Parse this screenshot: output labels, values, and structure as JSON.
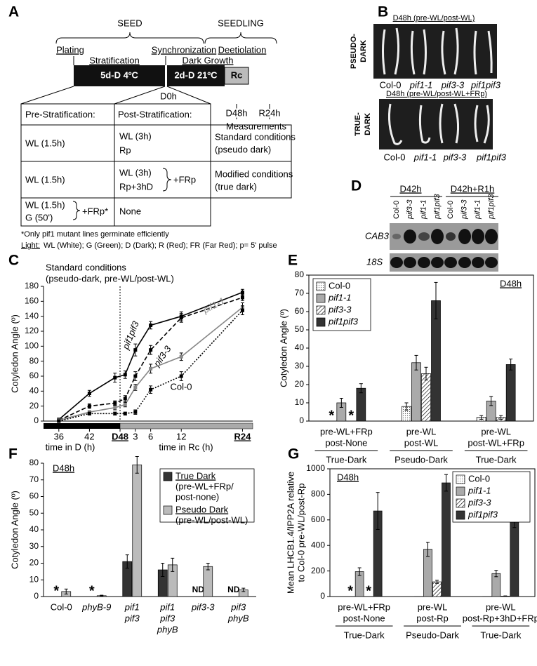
{
  "panel_a": {
    "label": "A",
    "seed": "SEED",
    "seedling": "SEEDLING",
    "steps": [
      "Plating",
      "Stratification",
      "Synchronization",
      "Dark Growth",
      "Deetiolation"
    ],
    "bars": [
      "5d-D 4ºC",
      "2d-D 21ºC",
      "Rc"
    ],
    "d0": "D0h",
    "d48": "D48h",
    "r24": "R24h",
    "measurements": "Measurements",
    "table": {
      "headers": [
        "Pre-Stratification:",
        "Post-Stratification:"
      ],
      "rows": [
        [
          [
            "WL (1.5h)"
          ],
          [
            "WL (3h)",
            "Rp"
          ],
          [
            "Standard conditions",
            "(pseudo dark)"
          ]
        ],
        [
          [
            "WL (1.5h)"
          ],
          [
            "WL (3h)",
            "Rp+3hD"
          ],
          [
            "Modified conditions",
            "(true dark)"
          ]
        ],
        [
          [
            "WL (1.5h)",
            "G (50')"
          ],
          [
            "None"
          ]
        ]
      ],
      "brace_labels": [
        "+FRp",
        "+FRp*"
      ]
    },
    "footnotes": [
      "*Only pif1 mutant lines germinate efficiently",
      "Light:",
      "WL (White); G (Green); D (Dark); R (Red); FR (Far Red); p= 5' pulse"
    ]
  },
  "panel_b": {
    "label": "B",
    "top": {
      "title": "D48h (pre-WL/post-WL)",
      "condition": [
        "PSEUDO-",
        "DARK"
      ],
      "lines": [
        "Col-0",
        "pif1-1",
        "pif3-3",
        "pif1pif3"
      ]
    },
    "bottom": {
      "title": "D48h (pre-WL/post-WL+FRp)",
      "condition": [
        "TRUE-",
        "DARK"
      ],
      "lines": [
        "Col-0",
        "pif1-1",
        "pif3-3",
        "pif1pif3"
      ]
    }
  },
  "panel_d": {
    "label": "D",
    "groups": [
      "D42h",
      "D42h+R1h"
    ],
    "lanes": [
      "Col-0",
      "pif3-3",
      "pif1-1",
      "pif1pif3",
      "Col-0",
      "pif3-3",
      "pif1-1",
      "pif1pif3"
    ],
    "probes": [
      "CAB3",
      "18S"
    ]
  },
  "chart_data": [
    {
      "type": "line",
      "panel_label": "C",
      "title": "Standard conditions",
      "subtitle": "(pseudo-dark, pre-WL/post-WL)",
      "ylabel": "Cotyledon Angle (º)",
      "xlabels": [
        "time in D (h)",
        "time in Rc (h)"
      ],
      "x": [
        36,
        42,
        47,
        49,
        51,
        54,
        60,
        72
      ],
      "xlim": [
        33,
        74
      ],
      "xticks": [
        {
          "value": 36,
          "label": "36"
        },
        {
          "value": 42,
          "label": "42"
        },
        {
          "value": 48,
          "label": "D48"
        },
        {
          "value": 51,
          "label": "3"
        },
        {
          "value": 54,
          "label": "6"
        },
        {
          "value": 60,
          "label": "12"
        },
        {
          "value": 72,
          "label": "R24"
        }
      ],
      "ylim": [
        0,
        180
      ],
      "yticks": [
        0,
        20,
        40,
        60,
        80,
        100,
        120,
        140,
        160,
        180
      ],
      "series": [
        {
          "name": "pif1pif3",
          "color": "#000000",
          "dash": "solid",
          "values": [
            2,
            37,
            58,
            62,
            95,
            128,
            140,
            172
          ],
          "errors": [
            2,
            4,
            6,
            5,
            8,
            5,
            6,
            4
          ]
        },
        {
          "name": "pif3-3",
          "color": "#000000",
          "dash": "dashed",
          "values": [
            1,
            20,
            24,
            30,
            60,
            95,
            138,
            165
          ],
          "errors": [
            1,
            3,
            3,
            4,
            6,
            6,
            6,
            4
          ]
        },
        {
          "name": "pif1-1",
          "color": "#888888",
          "dash": "solid",
          "values": [
            1,
            12,
            18,
            22,
            45,
            70,
            86,
            152
          ],
          "errors": [
            1,
            2,
            3,
            3,
            4,
            6,
            5,
            6
          ]
        },
        {
          "name": "Col-0",
          "color": "#000000",
          "dash": "dotted",
          "values": [
            0,
            10,
            10,
            10,
            12,
            42,
            60,
            148
          ],
          "errors": [
            1,
            2,
            2,
            2,
            3,
            5,
            6,
            6
          ]
        }
      ]
    },
    {
      "type": "bar",
      "panel_label": "E",
      "title": "D48h",
      "ylabel": "Cotyledon Angle (º)",
      "categories": [
        [
          "pre-WL+FRp",
          "post-None"
        ],
        [
          "pre-WL",
          "post-WL"
        ],
        [
          "pre-WL",
          "post-WL+FRp"
        ]
      ],
      "groups": [
        "True-Dark",
        "Pseudo-Dark",
        "True-Dark"
      ],
      "ylim": [
        0,
        80
      ],
      "yticks": [
        0,
        10,
        20,
        30,
        40,
        50,
        60,
        70,
        80
      ],
      "series": [
        {
          "name": "Col-0",
          "color": "#ffffff",
          "hatch": "dots",
          "values": [
            null,
            8,
            2
          ],
          "errors": [
            null,
            2,
            1
          ],
          "value_labels": [
            "*",
            null,
            null
          ]
        },
        {
          "name": "pif1-1",
          "color": "#aaaaaa",
          "values": [
            10,
            32,
            11
          ],
          "errors": [
            2.5,
            4,
            2.5
          ],
          "value_labels": [
            null,
            null,
            null
          ]
        },
        {
          "name": "pif3-3",
          "color": "#ffffff",
          "hatch": "diagonal",
          "values": [
            null,
            26,
            2
          ],
          "errors": [
            null,
            3.5,
            1
          ],
          "value_labels": [
            "*",
            null,
            null
          ]
        },
        {
          "name": "pif1pif3",
          "color": "#333333",
          "values": [
            18,
            66,
            31
          ],
          "errors": [
            2.5,
            10,
            3
          ],
          "value_labels": [
            null,
            null,
            null
          ]
        }
      ]
    },
    {
      "type": "bar",
      "panel_label": "F",
      "title": "D48h",
      "ylabel": "Cotyledon Angle (º)",
      "categories": [
        [
          "Col-0"
        ],
        [
          "phyB-9"
        ],
        [
          "pif1",
          "pif3"
        ],
        [
          "pif1",
          "pif3",
          "phyB"
        ],
        [
          "pif3-3"
        ],
        [
          "pif3",
          "phyB"
        ]
      ],
      "ylim": [
        0,
        80
      ],
      "yticks": [
        0,
        10,
        20,
        30,
        40,
        50,
        60,
        70,
        80
      ],
      "series": [
        {
          "name": "True Dark",
          "legend_note": [
            "(pre-WL+FRp/",
            "post-none)"
          ],
          "color": "#333333",
          "values": [
            null,
            null,
            21,
            16,
            null,
            null
          ],
          "errors": [
            null,
            null,
            4,
            4,
            null,
            null
          ],
          "value_labels": [
            "*",
            "*",
            null,
            null,
            "ND",
            "ND"
          ]
        },
        {
          "name": "Pseudo Dark",
          "legend_note": [
            "(pre-WL/post-WL)"
          ],
          "color": "#bbbbbb",
          "values": [
            3,
            0.5,
            79,
            19,
            18,
            4
          ],
          "errors": [
            1.5,
            0.3,
            5,
            4,
            2,
            1
          ],
          "value_labels": [
            null,
            null,
            null,
            null,
            null,
            null
          ]
        }
      ]
    },
    {
      "type": "bar",
      "panel_label": "G",
      "title": "D48h",
      "ylabel": [
        "Mean LHCB1.4/IPP2A relative",
        "to Col-0 pre-WL/post-Rp"
      ],
      "categories": [
        [
          "pre-WL+FRp",
          "post-None"
        ],
        [
          "pre-WL",
          "post-Rp"
        ],
        [
          "pre-WL",
          "post-Rp+3hD+FRp"
        ]
      ],
      "groups": [
        "True-Dark",
        "Pseudo-Dark",
        "True-Dark"
      ],
      "ylim": [
        0,
        1000
      ],
      "yticks": [
        0,
        200,
        400,
        600,
        800,
        1000
      ],
      "series": [
        {
          "name": "Col-0",
          "color": "#ffffff",
          "hatch": "dots",
          "values": [
            null,
            1,
            1
          ],
          "errors": [
            null,
            null,
            null
          ],
          "value_labels": [
            "*",
            null,
            null
          ]
        },
        {
          "name": "pif1-1",
          "color": "#aaaaaa",
          "values": [
            195,
            370,
            180
          ],
          "errors": [
            30,
            55,
            25
          ],
          "value_labels": [
            null,
            null,
            null
          ]
        },
        {
          "name": "pif3-3",
          "color": "#ffffff",
          "hatch": "diagonal",
          "values": [
            null,
            115,
            3
          ],
          "errors": [
            null,
            12,
            2
          ],
          "value_labels": [
            "*",
            null,
            null
          ]
        },
        {
          "name": "pif1pif3",
          "color": "#333333",
          "values": [
            670,
            890,
            610
          ],
          "errors": [
            145,
            65,
            70
          ],
          "value_labels": [
            null,
            null,
            null
          ]
        }
      ]
    }
  ]
}
